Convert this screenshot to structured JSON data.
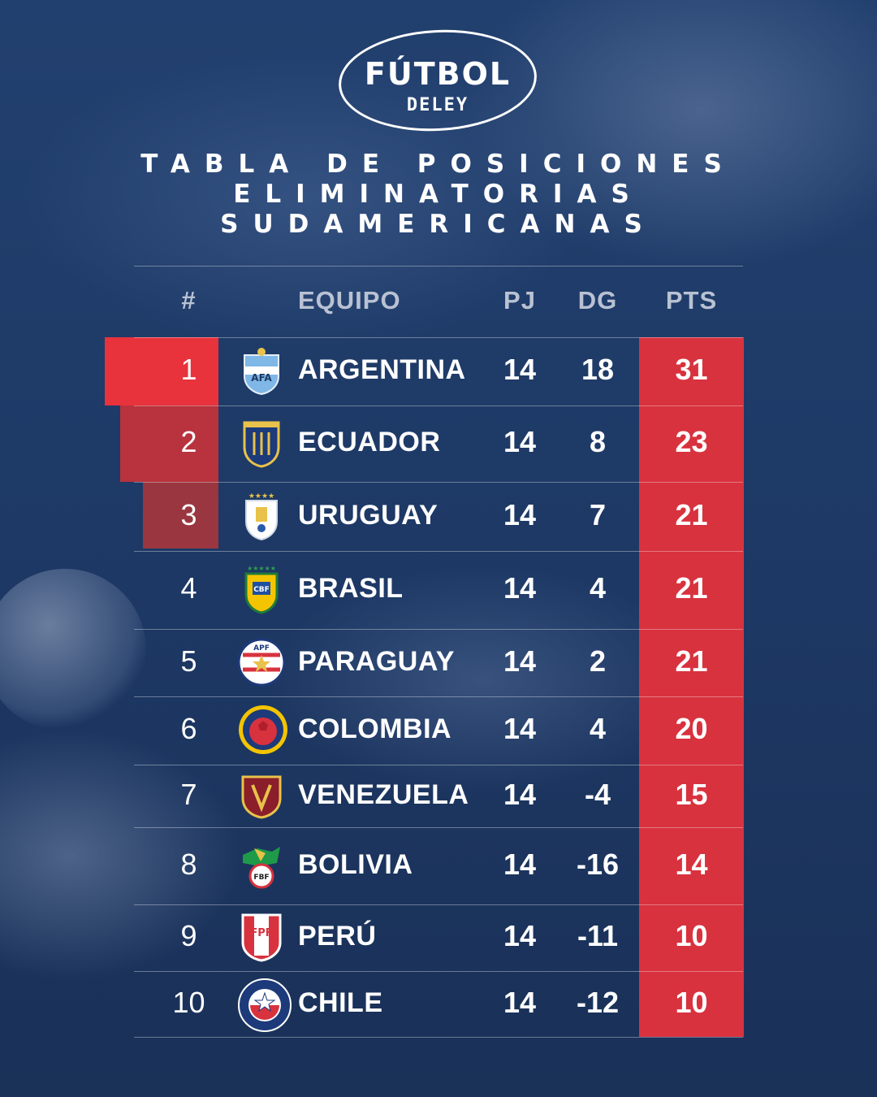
{
  "brand": {
    "logo_main": "FÚTBOL",
    "logo_sub": "DELEY"
  },
  "title": {
    "line1": "TABLA DE POSICIONES",
    "line2": "ELIMINATORIAS",
    "line3": "SUDAMERICANAS"
  },
  "table": {
    "headers": {
      "rank": "#",
      "team": "EQUIPO",
      "pj": "PJ",
      "dg": "DG",
      "pts": "PTS"
    },
    "rows": [
      {
        "rank": "1",
        "team": "ARGENTINA",
        "pj": "14",
        "dg": "18",
        "pts": "31",
        "crest": "afa-crest-icon"
      },
      {
        "rank": "2",
        "team": "ECUADOR",
        "pj": "14",
        "dg": "8",
        "pts": "23",
        "crest": "fef-crest-icon"
      },
      {
        "rank": "3",
        "team": "URUGUAY",
        "pj": "14",
        "dg": "7",
        "pts": "21",
        "crest": "auf-crest-icon"
      },
      {
        "rank": "4",
        "team": "BRASIL",
        "pj": "14",
        "dg": "4",
        "pts": "21",
        "crest": "cbf-crest-icon"
      },
      {
        "rank": "5",
        "team": "PARAGUAY",
        "pj": "14",
        "dg": "2",
        "pts": "21",
        "crest": "apf-crest-icon"
      },
      {
        "rank": "6",
        "team": "COLOMBIA",
        "pj": "14",
        "dg": "4",
        "pts": "20",
        "crest": "fcf-crest-icon"
      },
      {
        "rank": "7",
        "team": "VENEZUELA",
        "pj": "14",
        "dg": "-4",
        "pts": "15",
        "crest": "fvf-crest-icon"
      },
      {
        "rank": "8",
        "team": "BOLIVIA",
        "pj": "14",
        "dg": "-16",
        "pts": "14",
        "crest": "fbf-crest-icon"
      },
      {
        "rank": "9",
        "team": "PERÚ",
        "pj": "14",
        "dg": "-11",
        "pts": "10",
        "crest": "fpf-crest-icon"
      },
      {
        "rank": "10",
        "team": "CHILE",
        "pj": "14",
        "dg": "-12",
        "pts": "10",
        "crest": "ffch-crest-icon"
      }
    ]
  },
  "colors": {
    "background": "#1f3a66",
    "accent_red": "#d8323e",
    "rank1": "#e8323c",
    "rank2": "#b8333d",
    "rank3": "#9a3640",
    "header_text": "#b9c2d3"
  },
  "crest_text": {
    "afa": "AFA",
    "cbf": "CBF",
    "apf": "APF",
    "fbf": "FBF",
    "fpf": "FPF"
  }
}
